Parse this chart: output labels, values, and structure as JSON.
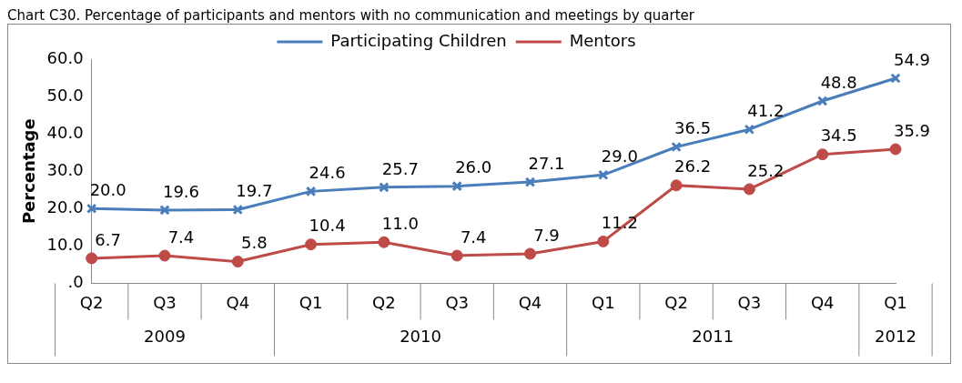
{
  "chart_data": {
    "type": "line",
    "title": "Chart C30. Percentage of participants and mentors with no communication and meetings by quarter",
    "ylabel": "Percentage",
    "categories": [
      "Q2",
      "Q3",
      "Q4",
      "Q1",
      "Q2",
      "Q3",
      "Q4",
      "Q1",
      "Q2",
      "Q3",
      "Q4",
      "Q1"
    ],
    "annotations": [
      "2009",
      "2010",
      "2011",
      "2012"
    ],
    "series": [
      {
        "name": "Participating Children",
        "color": "#4a7ebb",
        "marker": "cross",
        "values": [
          20.0,
          19.6,
          19.7,
          24.6,
          25.7,
          26.0,
          27.1,
          29.0,
          36.5,
          41.2,
          48.8,
          54.9
        ],
        "value_labels": [
          "20.0",
          "19.6",
          "19.7",
          "24.6",
          "25.7",
          "26.0",
          "27.1",
          "29.0",
          "36.5",
          "41.2",
          "48.8",
          "54.9"
        ]
      },
      {
        "name": "Mentors",
        "color": "#be4b48",
        "marker": "circle",
        "values": [
          6.7,
          7.4,
          5.8,
          10.4,
          11.0,
          7.4,
          7.9,
          11.2,
          26.2,
          25.2,
          34.5,
          35.9
        ],
        "value_labels": [
          "6.7",
          "7.4",
          "5.8",
          "10.4",
          "11.0",
          "7.4",
          "7.9",
          "11.2",
          "26.2",
          "25.2",
          "34.5",
          "35.9"
        ]
      }
    ],
    "ylim": [
      0,
      60
    ],
    "yticks": [
      {
        "value": 0,
        "label": ".0"
      },
      {
        "value": 10,
        "label": "10.0"
      },
      {
        "value": 20,
        "label": "20.0"
      },
      {
        "value": 30,
        "label": "30.0"
      },
      {
        "value": 40,
        "label": "40.0"
      },
      {
        "value": 50,
        "label": "50.0"
      },
      {
        "value": 60,
        "label": "60.0"
      }
    ],
    "grid": false,
    "legend": "top"
  }
}
